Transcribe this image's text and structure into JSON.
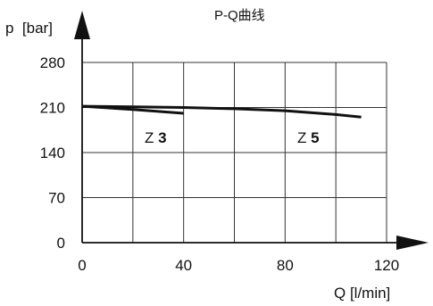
{
  "chart_data": {
    "type": "line",
    "title": "P-Q曲线",
    "xlabel": "Q [l/min]",
    "ylabel": "p  [bar]",
    "xlim": [
      0,
      120
    ],
    "ylim": [
      0,
      280
    ],
    "xticks": [
      0,
      40,
      80,
      120
    ],
    "yticks": [
      0,
      70,
      140,
      210,
      280
    ],
    "x_tick_labels": [
      "0",
      "40",
      "80",
      "120"
    ],
    "y_tick_labels": [
      "0",
      "70",
      "140",
      "210",
      "280"
    ],
    "grid": true,
    "grid_x": [
      0,
      20,
      40,
      60,
      80,
      100,
      120
    ],
    "grid_y": [
      0,
      70,
      140,
      210,
      280
    ],
    "line_color": "#111111",
    "series": [
      {
        "prefix": "Z ",
        "number": "3",
        "x": [
          0,
          20,
          40
        ],
        "y": [
          212,
          207,
          201
        ]
      },
      {
        "prefix": "Z ",
        "number": "5",
        "x": [
          0,
          20,
          40,
          60,
          80,
          100,
          110
        ],
        "y": [
          212,
          211,
          210,
          208,
          205,
          199,
          195
        ]
      }
    ]
  }
}
